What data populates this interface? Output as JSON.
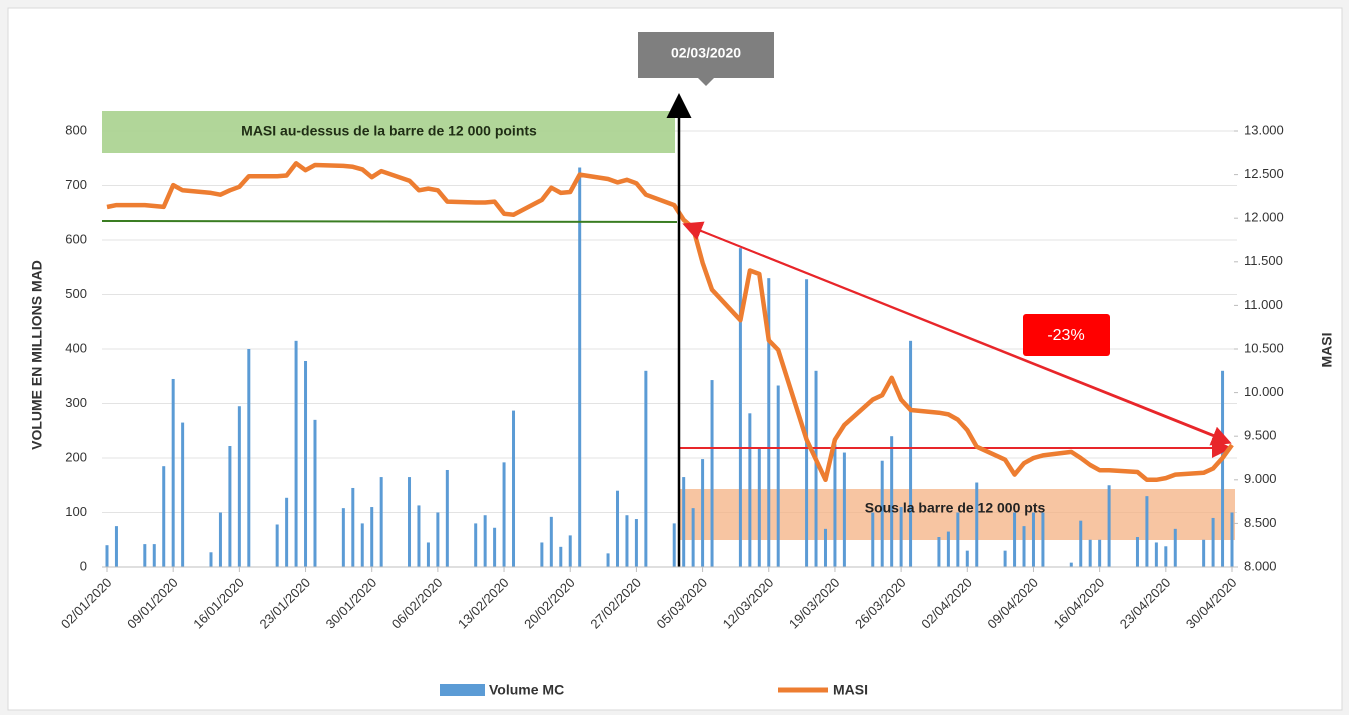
{
  "chart_data": {
    "type": "bar-line",
    "ylabel": "VOLUME EN MILLIONS MAD",
    "y2label": "MASI",
    "x": [
      "02/01/2020",
      "03/01/2020",
      "06/01/2020",
      "07/01/2020",
      "08/01/2020",
      "09/01/2020",
      "10/01/2020",
      "13/01/2020",
      "14/01/2020",
      "15/01/2020",
      "16/01/2020",
      "17/01/2020",
      "20/01/2020",
      "21/01/2020",
      "22/01/2020",
      "23/01/2020",
      "24/01/2020",
      "27/01/2020",
      "28/01/2020",
      "29/01/2020",
      "30/01/2020",
      "31/01/2020",
      "03/02/2020",
      "04/02/2020",
      "05/02/2020",
      "06/02/2020",
      "07/02/2020",
      "10/02/2020",
      "11/02/2020",
      "12/02/2020",
      "13/02/2020",
      "14/02/2020",
      "17/02/2020",
      "18/02/2020",
      "19/02/2020",
      "20/02/2020",
      "21/02/2020",
      "24/02/2020",
      "25/02/2020",
      "26/02/2020",
      "27/02/2020",
      "28/02/2020",
      "02/03/2020",
      "03/03/2020",
      "04/03/2020",
      "05/03/2020",
      "06/03/2020",
      "09/03/2020",
      "10/03/2020",
      "11/03/2020",
      "12/03/2020",
      "13/03/2020",
      "16/03/2020",
      "17/03/2020",
      "18/03/2020",
      "19/03/2020",
      "20/03/2020",
      "23/03/2020",
      "24/03/2020",
      "25/03/2020",
      "26/03/2020",
      "27/03/2020",
      "30/03/2020",
      "31/03/2020",
      "01/04/2020",
      "02/04/2020",
      "03/04/2020",
      "06/04/2020",
      "07/04/2020",
      "08/04/2020",
      "09/04/2020",
      "10/04/2020",
      "13/04/2020",
      "14/04/2020",
      "15/04/2020",
      "16/04/2020",
      "17/04/2020",
      "20/04/2020",
      "21/04/2020",
      "22/04/2020",
      "23/04/2020",
      "24/04/2020",
      "27/04/2020",
      "28/04/2020",
      "29/04/2020",
      "30/04/2020"
    ],
    "series": [
      {
        "name": "Volume MC",
        "color": "#5b9bd5",
        "kind": "bar",
        "values": [
          40,
          75,
          42,
          42,
          185,
          345,
          265,
          27,
          100,
          222,
          295,
          400,
          78,
          127,
          415,
          378,
          270,
          108,
          145,
          80,
          110,
          165,
          165,
          113,
          45,
          100,
          178,
          80,
          95,
          72,
          192,
          287,
          45,
          92,
          37,
          58,
          733,
          25,
          140,
          95,
          88,
          360,
          80,
          165,
          108,
          198,
          343,
          585,
          282,
          220,
          530,
          333,
          528,
          360,
          70,
          225,
          210,
          100,
          195,
          240,
          110,
          415,
          55,
          65,
          100,
          30,
          155,
          30,
          100,
          75,
          100,
          100,
          8,
          85,
          50,
          50,
          150,
          55,
          130,
          45,
          38,
          70,
          50,
          90,
          360,
          100
        ]
      },
      {
        "name": "MASI",
        "color": "#ed7d31",
        "kind": "line",
        "axis": "y2",
        "values": [
          12128,
          12150,
          12150,
          12140,
          12130,
          12380,
          12320,
          12290,
          12270,
          12320,
          12360,
          12480,
          12480,
          12490,
          12630,
          12550,
          12610,
          12600,
          12590,
          12560,
          12470,
          12540,
          12430,
          12320,
          12340,
          12320,
          12190,
          12180,
          12180,
          12190,
          12050,
          12040,
          12210,
          12350,
          12290,
          12300,
          12500,
          12450,
          12410,
          12440,
          12400,
          12270,
          12150,
          11980,
          11890,
          11490,
          11180,
          10830,
          11400,
          11360,
          10600,
          10490,
          9460,
          9230,
          9000,
          9460,
          9630,
          9920,
          9970,
          10170,
          9920,
          9800,
          9770,
          9750,
          9690,
          9570,
          9380,
          9230,
          9060,
          9190,
          9250,
          9280,
          9320,
          9250,
          9170,
          9110,
          9110,
          9090,
          9000,
          9000,
          9020,
          9060,
          9080,
          9130,
          9250,
          9400
        ]
      }
    ],
    "xlim": [
      "02/01/2020",
      "30/04/2020"
    ],
    "xticks": [
      "02/01/2020",
      "09/01/2020",
      "16/01/2020",
      "23/01/2020",
      "30/01/2020",
      "06/02/2020",
      "13/02/2020",
      "20/02/2020",
      "27/02/2020",
      "05/03/2020",
      "12/03/2020",
      "19/03/2020",
      "26/03/2020",
      "02/04/2020",
      "09/04/2020",
      "16/04/2020",
      "23/04/2020",
      "30/04/2020"
    ],
    "ylim": [
      0,
      800
    ],
    "yticks": [
      0,
      100,
      200,
      300,
      400,
      500,
      600,
      700,
      800
    ],
    "y2lim": [
      8000,
      13000
    ],
    "y2ticks": [
      {
        "value": 8000,
        "label": "8.000"
      },
      {
        "value": 8500,
        "label": "8.500"
      },
      {
        "value": 9000,
        "label": "9.000"
      },
      {
        "value": 9500,
        "label": "9.500"
      },
      {
        "value": 10000,
        "label": "10.000"
      },
      {
        "value": 10500,
        "label": "10.500"
      },
      {
        "value": 11000,
        "label": "11.000"
      },
      {
        "value": 11500,
        "label": "11.500"
      },
      {
        "value": 12000,
        "label": "12.000"
      },
      {
        "value": 12500,
        "label": "12.500"
      },
      {
        "value": 13000,
        "label": "13.000"
      }
    ],
    "grid": true,
    "legend": "bottom",
    "annotations": {
      "date": "02/03/2020",
      "above": "MASI au-dessus de la barre de 12 000 points",
      "below": "Sous la barre de 12 000 pts",
      "change": "-23%"
    }
  }
}
